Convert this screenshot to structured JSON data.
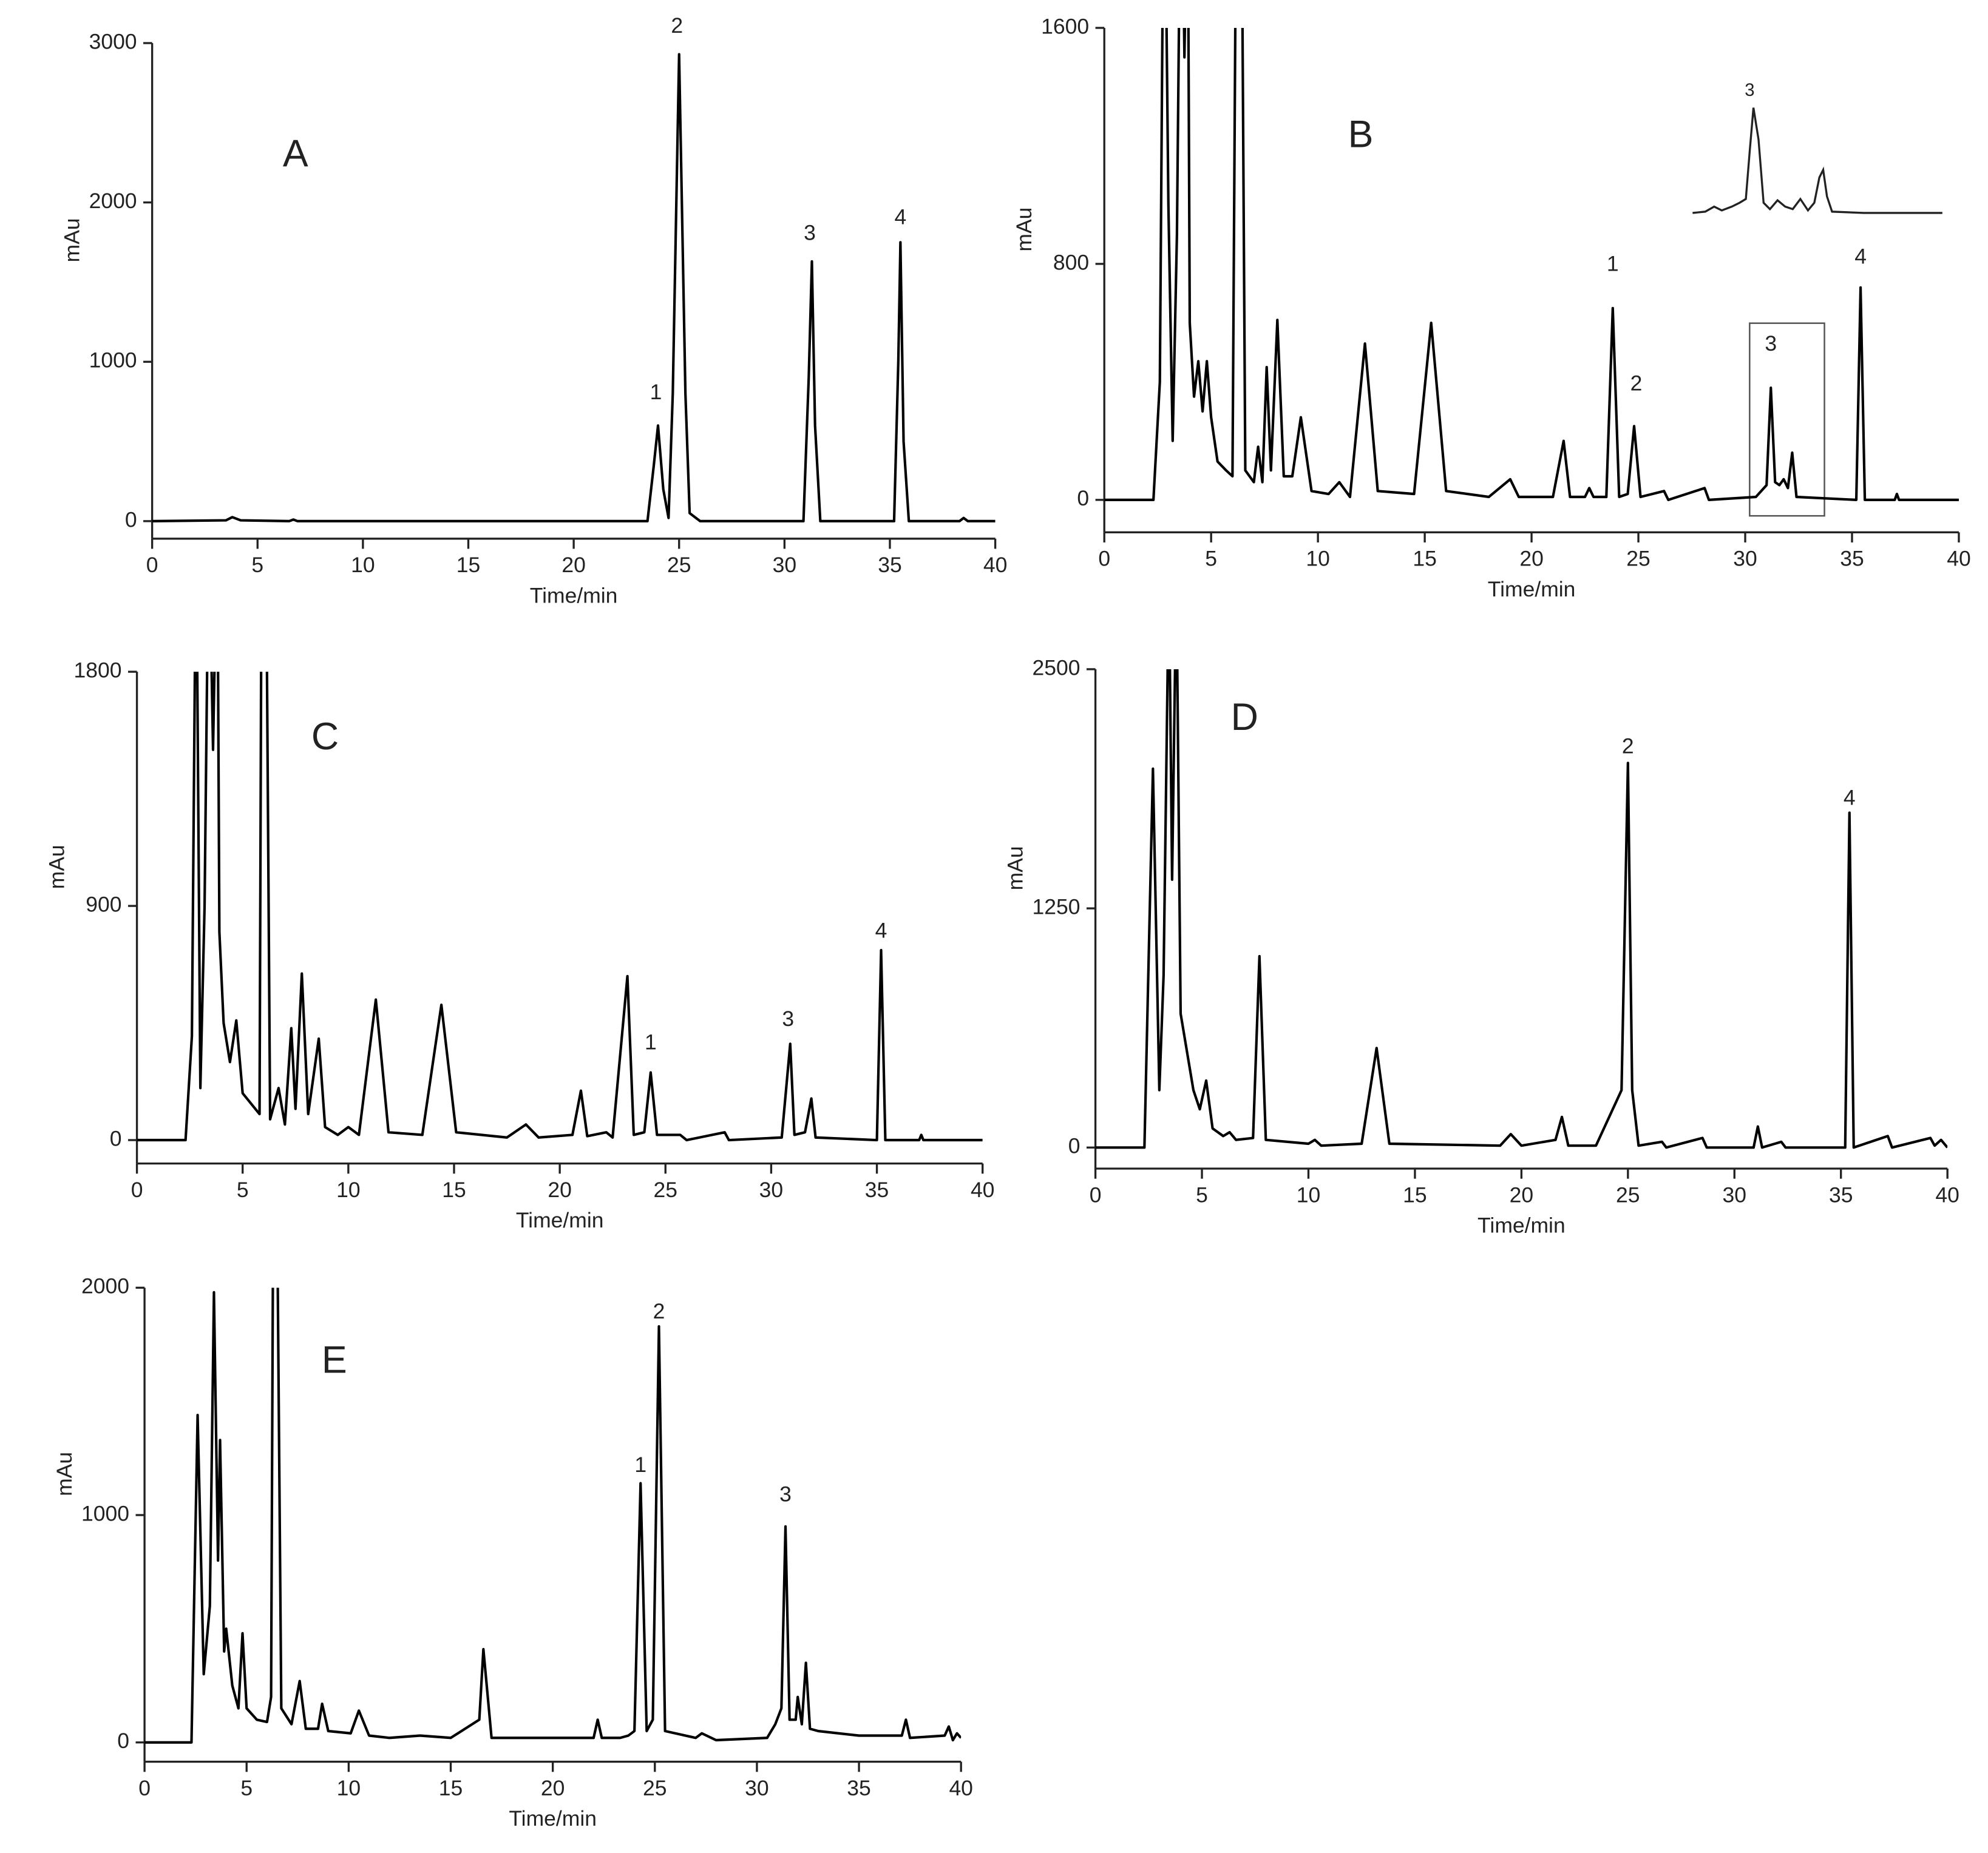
{
  "chart_data": [
    {
      "type": "line",
      "ylabel": "mAu",
      "xlabel": "Time/min",
      "color": "#000000",
      "xlim": [
        0,
        40
      ],
      "ylim": [
        -110,
        3000
      ],
      "xticks": [
        0,
        5,
        10,
        15,
        20,
        25,
        30,
        35,
        40
      ],
      "yticks": [
        0,
        1000,
        2000,
        3000
      ],
      "x": [
        0,
        3.5,
        3.8,
        4.2,
        6.5,
        6.7,
        6.9,
        23.5,
        23.8,
        24.0,
        24.25,
        24.5,
        24.7,
        25.0,
        25.3,
        25.5,
        26,
        30.9,
        31.15,
        31.3,
        31.45,
        31.7,
        35.2,
        35.4,
        35.5,
        35.65,
        35.9,
        38.3,
        38.5,
        38.7,
        40
      ],
      "values": [
        0,
        5,
        25,
        5,
        0,
        10,
        0,
        0,
        350,
        600,
        200,
        20,
        800,
        2930,
        800,
        50,
        0,
        0,
        900,
        1630,
        600,
        0,
        0,
        1000,
        1750,
        500,
        0,
        0,
        20,
        0,
        0
      ],
      "annotations": [
        {
          "text": "A",
          "x": 6.8,
          "y": 2290
        },
        {
          "text": "1",
          "x": 23.9,
          "y": 800
        },
        {
          "text": "2",
          "x": 24.9,
          "y": 3100
        },
        {
          "text": "3",
          "x": 31.2,
          "y": 1800
        },
        {
          "text": "4",
          "x": 35.5,
          "y": 1900
        }
      ]
    },
    {
      "type": "line",
      "ylabel": "mAu",
      "xlabel": "Time/min",
      "color": "#000000",
      "inset_label": "3",
      "xlim": [
        0,
        40
      ],
      "ylim": [
        -110,
        1600
      ],
      "xticks": [
        0,
        5,
        10,
        15,
        20,
        25,
        30,
        35,
        40
      ],
      "yticks": [
        0,
        800,
        1600
      ],
      "x": [
        0,
        2.3,
        2.6,
        2.8,
        3.0,
        3.2,
        3.4,
        3.6,
        3.75,
        3.9,
        4.0,
        4.2,
        4.4,
        4.6,
        4.8,
        5.0,
        5.3,
        5.7,
        6.0,
        6.2,
        6.4,
        6.6,
        7.0,
        7.2,
        7.4,
        7.6,
        7.8,
        8.1,
        8.4,
        8.8,
        9.2,
        9.7,
        10.5,
        11,
        11.5,
        12.2,
        12.8,
        14.5,
        15.3,
        16,
        18,
        19,
        19.4,
        21,
        21.5,
        21.8,
        22.5,
        22.7,
        22.9,
        23.5,
        23.8,
        24.1,
        24.5,
        24.8,
        25.1,
        26.2,
        26.4,
        28.1,
        28.3,
        30.5,
        31.0,
        31.2,
        31.4,
        31.6,
        31.8,
        32.0,
        32.2,
        32.4,
        35.2,
        35.4,
        35.6,
        37,
        37.1,
        37.2,
        40
      ],
      "values": [
        0,
        0,
        400,
        2400,
        1000,
        200,
        900,
        2400,
        1500,
        2200,
        600,
        350,
        470,
        300,
        470,
        280,
        130,
        100,
        80,
        2400,
        2400,
        100,
        60,
        180,
        60,
        450,
        100,
        610,
        80,
        80,
        280,
        30,
        20,
        60,
        10,
        530,
        30,
        20,
        600,
        30,
        10,
        70,
        10,
        10,
        200,
        10,
        10,
        40,
        10,
        10,
        650,
        10,
        20,
        250,
        10,
        30,
        0,
        40,
        0,
        10,
        50,
        380,
        60,
        50,
        70,
        40,
        160,
        10,
        0,
        720,
        0,
        0,
        20,
        0,
        0
      ],
      "annotations": [
        {
          "text": "B",
          "x": 12,
          "y": 1230
        },
        {
          "text": "1",
          "x": 23.8,
          "y": 795
        },
        {
          "text": "2",
          "x": 24.9,
          "y": 390
        },
        {
          "text": "3",
          "x": 31.2,
          "y": 525
        },
        {
          "text": "4",
          "x": 35.4,
          "y": 820
        }
      ]
    },
    {
      "type": "line",
      "ylabel": "mAu",
      "xlabel": "Time/min",
      "color": "#000000",
      "xlim": [
        0,
        40
      ],
      "ylim": [
        -90,
        1800
      ],
      "xticks": [
        0,
        5,
        10,
        15,
        20,
        25,
        30,
        35,
        40
      ],
      "yticks": [
        0,
        900,
        1800
      ],
      "x": [
        0,
        2.3,
        2.6,
        2.8,
        3.0,
        3.2,
        3.4,
        3.6,
        3.8,
        3.9,
        4.1,
        4.4,
        4.7,
        5.0,
        5.3,
        5.8,
        5.9,
        6.1,
        6.3,
        6.7,
        7.0,
        7.3,
        7.5,
        7.8,
        8.1,
        8.6,
        8.9,
        9.5,
        10,
        10.5,
        11.3,
        11.9,
        13.5,
        14.4,
        15.1,
        17.5,
        18.4,
        19,
        20.6,
        21,
        21.3,
        22.2,
        22.5,
        23.2,
        23.5,
        24,
        24.3,
        24.6,
        25.7,
        26,
        27.8,
        28,
        30.5,
        30.9,
        31.1,
        31.6,
        31.9,
        32.1,
        35,
        35.2,
        35.4,
        37,
        37.1,
        37.2,
        40
      ],
      "values": [
        0,
        0,
        400,
        2400,
        200,
        900,
        2400,
        1500,
        2400,
        800,
        450,
        300,
        460,
        180,
        150,
        100,
        2400,
        2400,
        80,
        200,
        60,
        430,
        120,
        640,
        100,
        390,
        50,
        20,
        50,
        20,
        540,
        30,
        20,
        520,
        30,
        10,
        60,
        10,
        20,
        190,
        15,
        30,
        10,
        630,
        20,
        30,
        260,
        20,
        20,
        0,
        30,
        0,
        10,
        370,
        20,
        30,
        160,
        10,
        0,
        730,
        0,
        0,
        20,
        0,
        0
      ],
      "annotations": [
        {
          "text": "C",
          "x": 8.9,
          "y": 1540
        },
        {
          "text": "1",
          "x": 24.3,
          "y": 370
        },
        {
          "text": "3",
          "x": 30.8,
          "y": 460
        },
        {
          "text": "4",
          "x": 35.2,
          "y": 800
        }
      ]
    },
    {
      "type": "line",
      "ylabel": "mAu",
      "xlabel": "Time/min",
      "color": "#000000",
      "xlim": [
        0,
        40
      ],
      "ylim": [
        -110,
        2500
      ],
      "xticks": [
        0,
        5,
        10,
        15,
        20,
        25,
        30,
        35,
        40
      ],
      "yticks": [
        0,
        1250,
        2500
      ],
      "x": [
        0,
        2.3,
        2.7,
        3.0,
        3.2,
        3.45,
        3.6,
        3.8,
        4.0,
        4.3,
        4.6,
        4.9,
        5.2,
        5.5,
        6,
        6.3,
        6.6,
        7.4,
        7.7,
        8.0,
        10,
        10.3,
        10.6,
        12.5,
        13.2,
        13.8,
        19,
        19.5,
        20,
        21.6,
        21.9,
        22.2,
        23.5,
        24.7,
        25.0,
        25.2,
        25.5,
        26.6,
        26.8,
        28.5,
        28.7,
        30.9,
        31.1,
        31.3,
        32.2,
        32.4,
        35.2,
        35.4,
        35.6,
        37.2,
        37.4,
        39.2,
        39.4,
        39.7,
        40
      ],
      "values": [
        0,
        0,
        1980,
        300,
        900,
        3000,
        1400,
        3000,
        700,
        500,
        300,
        200,
        350,
        100,
        60,
        80,
        40,
        50,
        1000,
        40,
        20,
        40,
        10,
        20,
        520,
        20,
        10,
        70,
        10,
        40,
        160,
        10,
        10,
        300,
        2010,
        300,
        10,
        30,
        0,
        50,
        0,
        0,
        110,
        0,
        30,
        0,
        0,
        1750,
        0,
        60,
        0,
        50,
        10,
        40,
        0
      ],
      "annotations": [
        {
          "text": "D",
          "x": 7.0,
          "y": 2235
        },
        {
          "text": "2",
          "x": 25.0,
          "y": 2090
        },
        {
          "text": "4",
          "x": 35.4,
          "y": 1820
        }
      ]
    },
    {
      "type": "line",
      "ylabel": "mAu",
      "xlabel": "Time/min",
      "color": "#000000",
      "xlim": [
        0,
        40
      ],
      "ylim": [
        -85,
        2000
      ],
      "xticks": [
        0,
        5,
        10,
        15,
        20,
        25,
        30,
        35,
        40
      ],
      "yticks": [
        0,
        1000,
        2000
      ],
      "x": [
        0,
        2.3,
        2.6,
        2.9,
        3.2,
        3.4,
        3.6,
        3.7,
        3.9,
        4.0,
        4.3,
        4.6,
        4.8,
        5.0,
        5.5,
        6.0,
        6.2,
        6.3,
        6.5,
        6.7,
        7.2,
        7.6,
        7.9,
        8.5,
        8.7,
        9,
        10.1,
        10.5,
        11,
        12,
        13.5,
        15,
        16.4,
        16.6,
        17.0,
        20,
        22.0,
        22.2,
        22.4,
        23.3,
        23.7,
        24.0,
        24.3,
        24.6,
        24.9,
        25.2,
        25.5,
        27,
        27.3,
        28,
        30.5,
        30.9,
        31.2,
        31.4,
        31.6,
        31.9,
        32.0,
        32.2,
        32.4,
        32.6,
        33,
        35,
        37.1,
        37.3,
        37.5,
        39.2,
        39.4,
        39.6,
        39.8,
        40
      ],
      "values": [
        0,
        0,
        1440,
        300,
        600,
        1980,
        800,
        1330,
        400,
        500,
        250,
        150,
        480,
        150,
        100,
        90,
        200,
        2300,
        2300,
        150,
        80,
        270,
        60,
        60,
        170,
        50,
        40,
        140,
        30,
        20,
        30,
        20,
        100,
        410,
        20,
        20,
        20,
        100,
        20,
        20,
        30,
        50,
        1140,
        50,
        100,
        1830,
        50,
        20,
        40,
        10,
        20,
        80,
        150,
        950,
        100,
        100,
        200,
        80,
        350,
        60,
        50,
        30,
        30,
        100,
        20,
        30,
        70,
        10,
        40,
        20
      ],
      "annotations": [
        {
          "text": "E",
          "x": 9.3,
          "y": 1670
        },
        {
          "text": "1",
          "x": 24.3,
          "y": 1215
        },
        {
          "text": "2",
          "x": 25.2,
          "y": 1890
        },
        {
          "text": "3",
          "x": 31.4,
          "y": 1085
        }
      ]
    }
  ]
}
